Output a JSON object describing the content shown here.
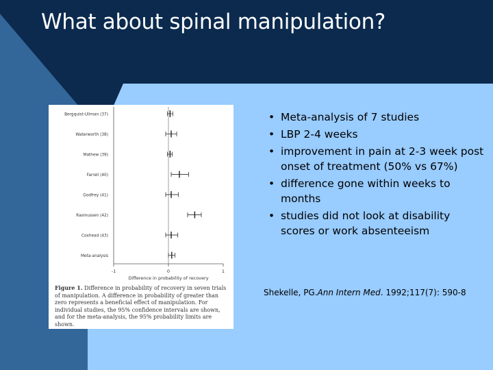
{
  "slide": {
    "title": "What about spinal manipulation?",
    "colors": {
      "dark_navy": "#0b2a4e",
      "mid_blue": "#336699",
      "light_blue": "#99ccff"
    }
  },
  "bullets": [
    "Meta-analysis of 7 studies",
    "LBP 2-4 weeks",
    "improvement in pain at 2-3 week post onset of treatment (50% vs 67%)",
    "difference gone within weeks to months",
    "studies did not look at disability scores or work absenteeism"
  ],
  "citation": {
    "authors": "Shekelle, PG.",
    "journal": "Ann Intern Med",
    "details": ". 1992;117(7): 590-8"
  },
  "figure": {
    "caption_label": "Figure 1.",
    "caption_text": "Difference in probability of recovery in seven trials of manipulation. A difference in probability of greater than zero represents a beneficial effect of manipulation. For individual studies, the 95% confidence intervals are shown, and for the meta-analysis, the 95% probability limits are shown.",
    "chart_data": {
      "type": "scatter",
      "xlabel": "Difference in probability of recovery",
      "xlim": [
        -1,
        1
      ],
      "x_ticks": [
        "-1",
        "0",
        "1"
      ],
      "categories": [
        "Bergquist-Ullman (37)",
        "Waterworth (38)",
        "Mathew (39)",
        "Farrell (40)",
        "Godfrey (41)",
        "Rasmussen (42)",
        "Coxhead (43)",
        "Meta-analysis"
      ],
      "estimates": [
        0.03,
        0.05,
        0.03,
        0.2,
        0.05,
        0.48,
        0.05,
        0.06
      ],
      "lower": [
        -0.02,
        -0.05,
        -0.02,
        0.05,
        -0.05,
        0.35,
        -0.05,
        0.0
      ],
      "upper": [
        0.08,
        0.15,
        0.07,
        0.37,
        0.18,
        0.6,
        0.17,
        0.12
      ]
    }
  }
}
